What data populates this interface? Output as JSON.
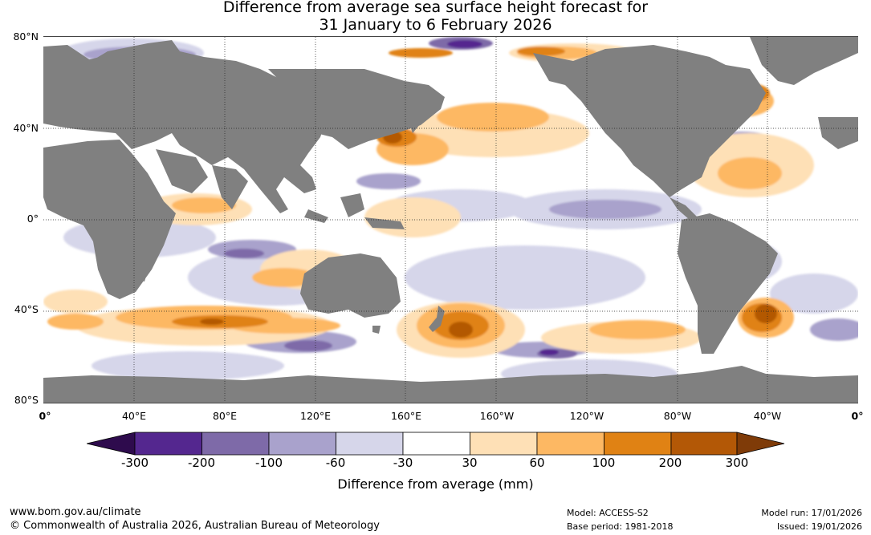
{
  "title": {
    "line1": "Difference from average sea surface height forecast for",
    "line2": "31 January to 6 February 2026"
  },
  "map": {
    "lat_labels": [
      "80°N",
      "40°N",
      "0°",
      "40°S",
      "80°S"
    ],
    "lon_labels": [
      "0°",
      "40°E",
      "80°E",
      "120°E",
      "160°E",
      "160°W",
      "120°W",
      "80°W",
      "40°W",
      "0°"
    ],
    "land_color": "#808080",
    "grid_color": "#222222"
  },
  "colorbar": {
    "colors": [
      "#2e0b4d",
      "#54278f",
      "#7e6aa8",
      "#a9a2cc",
      "#d6d6ea",
      "#ffffff",
      "#fee0b6",
      "#fdb863",
      "#e08214",
      "#b35806",
      "#7f3b08"
    ],
    "tick_labels": [
      "-300",
      "-200",
      "-100",
      "-60",
      "-30",
      "30",
      "60",
      "100",
      "200",
      "300"
    ],
    "title": "Difference from average (mm)"
  },
  "footer": {
    "url": "www.bom.gov.au/climate",
    "copyright": "© Commonwealth of Australia 2026, Australian Bureau of Meteorology",
    "model": "Model: ACCESS-S2",
    "base_period": "Base period: 1981-2018",
    "model_run": "Model run: 17/01/2026",
    "issued": "Issued: 19/01/2026"
  }
}
